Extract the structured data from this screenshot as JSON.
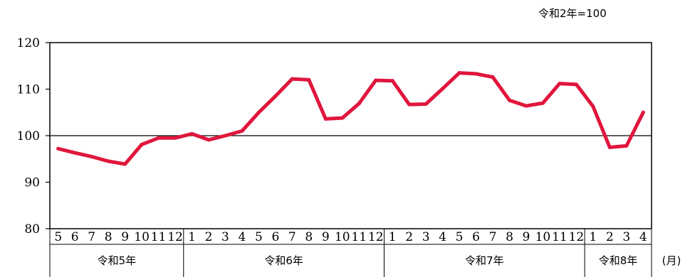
{
  "note": "令和2年=100",
  "month_unit": "(月)",
  "chart_data": {
    "type": "line",
    "ylim": [
      80,
      120
    ],
    "yticks": [
      80,
      90,
      100,
      110,
      120
    ],
    "reference_line": 100,
    "grid": false,
    "line_color": "#e0163d",
    "years": [
      {
        "label": "令和5年",
        "months": [
          "5",
          "6",
          "7",
          "8",
          "9",
          "10",
          "11",
          "12"
        ]
      },
      {
        "label": "令和6年",
        "months": [
          "1",
          "2",
          "3",
          "4",
          "5",
          "6",
          "7",
          "8",
          "9",
          "10",
          "11",
          "12"
        ]
      },
      {
        "label": "令和7年",
        "months": [
          "1",
          "2",
          "3",
          "4",
          "5",
          "6",
          "7",
          "8",
          "9",
          "10",
          "11",
          "12"
        ]
      },
      {
        "label": "令和8年",
        "months": [
          "1",
          "2",
          "3",
          "4"
        ]
      }
    ],
    "values": [
      97.2,
      96.3,
      95.5,
      94.5,
      93.9,
      98.1,
      99.5,
      99.5,
      100.4,
      99.1,
      100.0,
      101.0,
      105.0,
      108.5,
      112.2,
      112.0,
      103.6,
      103.8,
      106.9,
      111.9,
      111.8,
      106.7,
      106.8,
      110.1,
      113.5,
      113.3,
      112.6,
      107.6,
      106.4,
      107.0,
      111.2,
      111.0,
      106.3,
      97.5,
      97.8,
      105.0
    ]
  }
}
